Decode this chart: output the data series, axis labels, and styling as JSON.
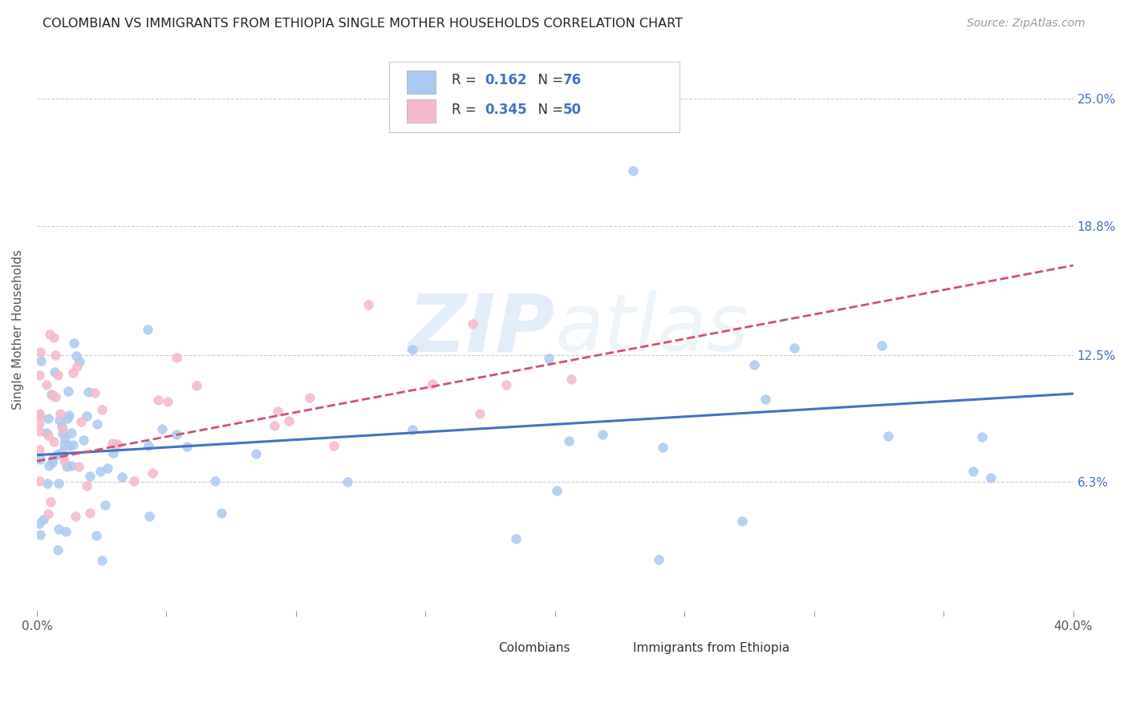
{
  "title": "COLOMBIAN VS IMMIGRANTS FROM ETHIOPIA SINGLE MOTHER HOUSEHOLDS CORRELATION CHART",
  "source": "Source: ZipAtlas.com",
  "ylabel": "Single Mother Households",
  "ytick_labels": [
    "6.3%",
    "12.5%",
    "18.8%",
    "25.0%"
  ],
  "ytick_values": [
    0.063,
    0.125,
    0.188,
    0.25
  ],
  "xmin": 0.0,
  "xmax": 0.4,
  "ymin": 0.0,
  "ymax": 0.275,
  "r_colombian": 0.162,
  "n_colombian": 76,
  "r_ethiopia": 0.345,
  "n_ethiopia": 50,
  "color_colombian": "#aac9f0",
  "color_ethiopia": "#f5b8cb",
  "line_color_colombian": "#4472c4",
  "line_color_ethiopia": "#d4506e",
  "watermark": "ZIPatlas",
  "background_color": "#ffffff",
  "legend_text_color": "#4472c4",
  "legend_label_color": "#333333"
}
